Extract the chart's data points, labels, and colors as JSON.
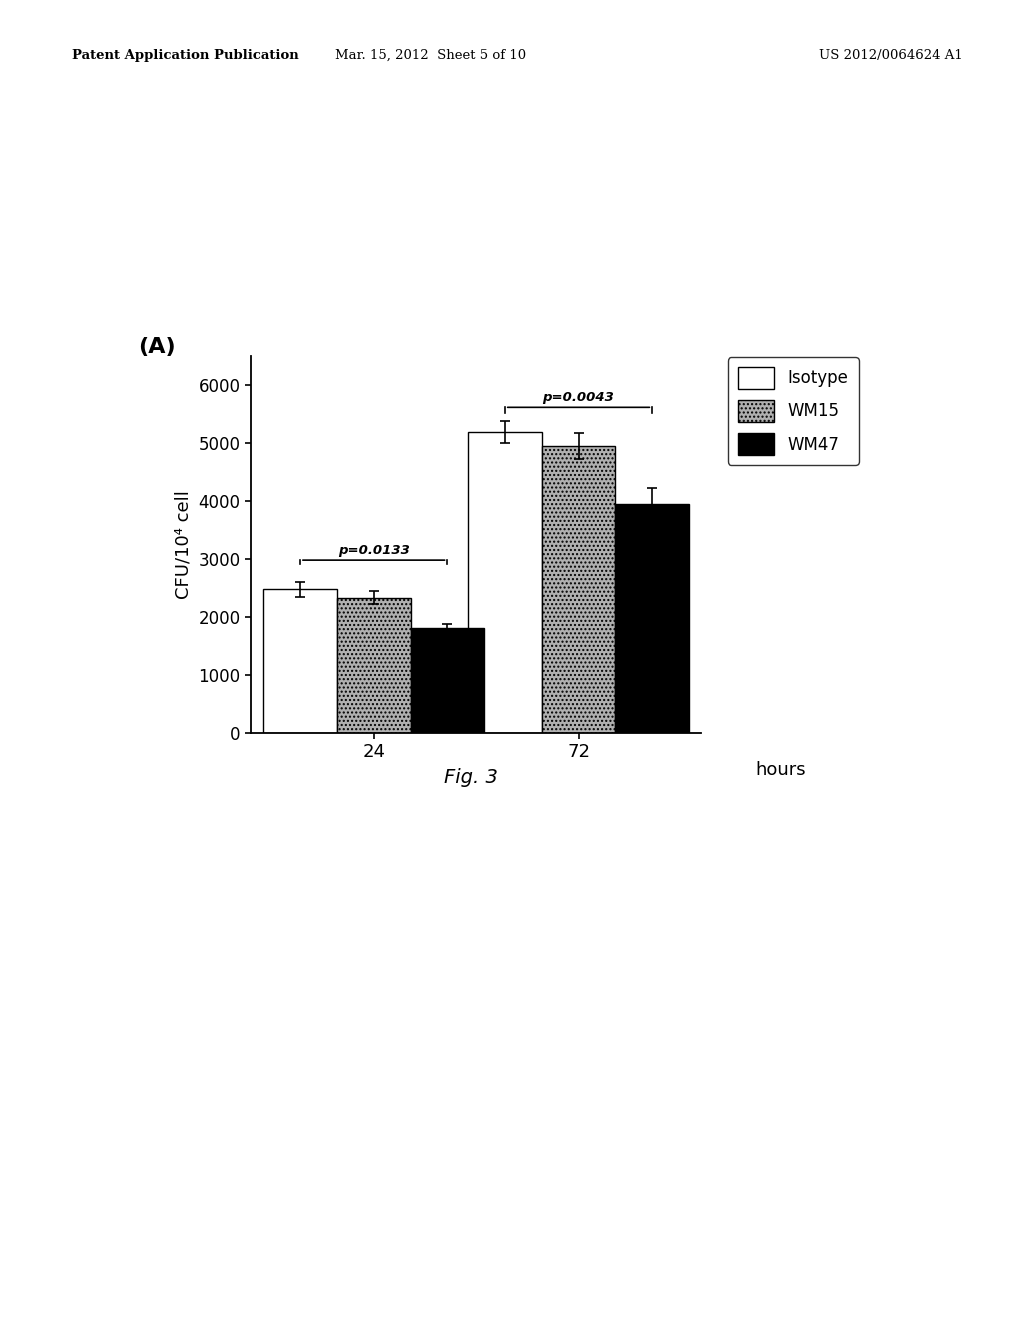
{
  "groups": [
    "24",
    "72"
  ],
  "series": [
    "Isotype",
    "WM15",
    "WM47"
  ],
  "values": {
    "24": [
      2480,
      2330,
      1800
    ],
    "72": [
      5200,
      4950,
      3950
    ]
  },
  "errors": {
    "24": [
      130,
      110,
      70
    ],
    "72": [
      190,
      220,
      270
    ]
  },
  "bar_colors": [
    "#ffffff",
    "#b0b0b0",
    "#000000"
  ],
  "bar_edgecolor": "#000000",
  "bar_width": 0.18,
  "ylabel": "CFU/10⁴ cell",
  "xlabel": "hours",
  "ylim": [
    0,
    6500
  ],
  "yticks": [
    0,
    1000,
    2000,
    3000,
    4000,
    5000,
    6000
  ],
  "label_A": "(A)",
  "p_value_24": "p=0.0133",
  "p_value_72": "p=0.0043",
  "fig_label": "Fig. 3",
  "header_left": "Patent Application Publication",
  "header_mid": "Mar. 15, 2012  Sheet 5 of 10",
  "header_right": "US 2012/0064624 A1",
  "background_color": "#ffffff"
}
